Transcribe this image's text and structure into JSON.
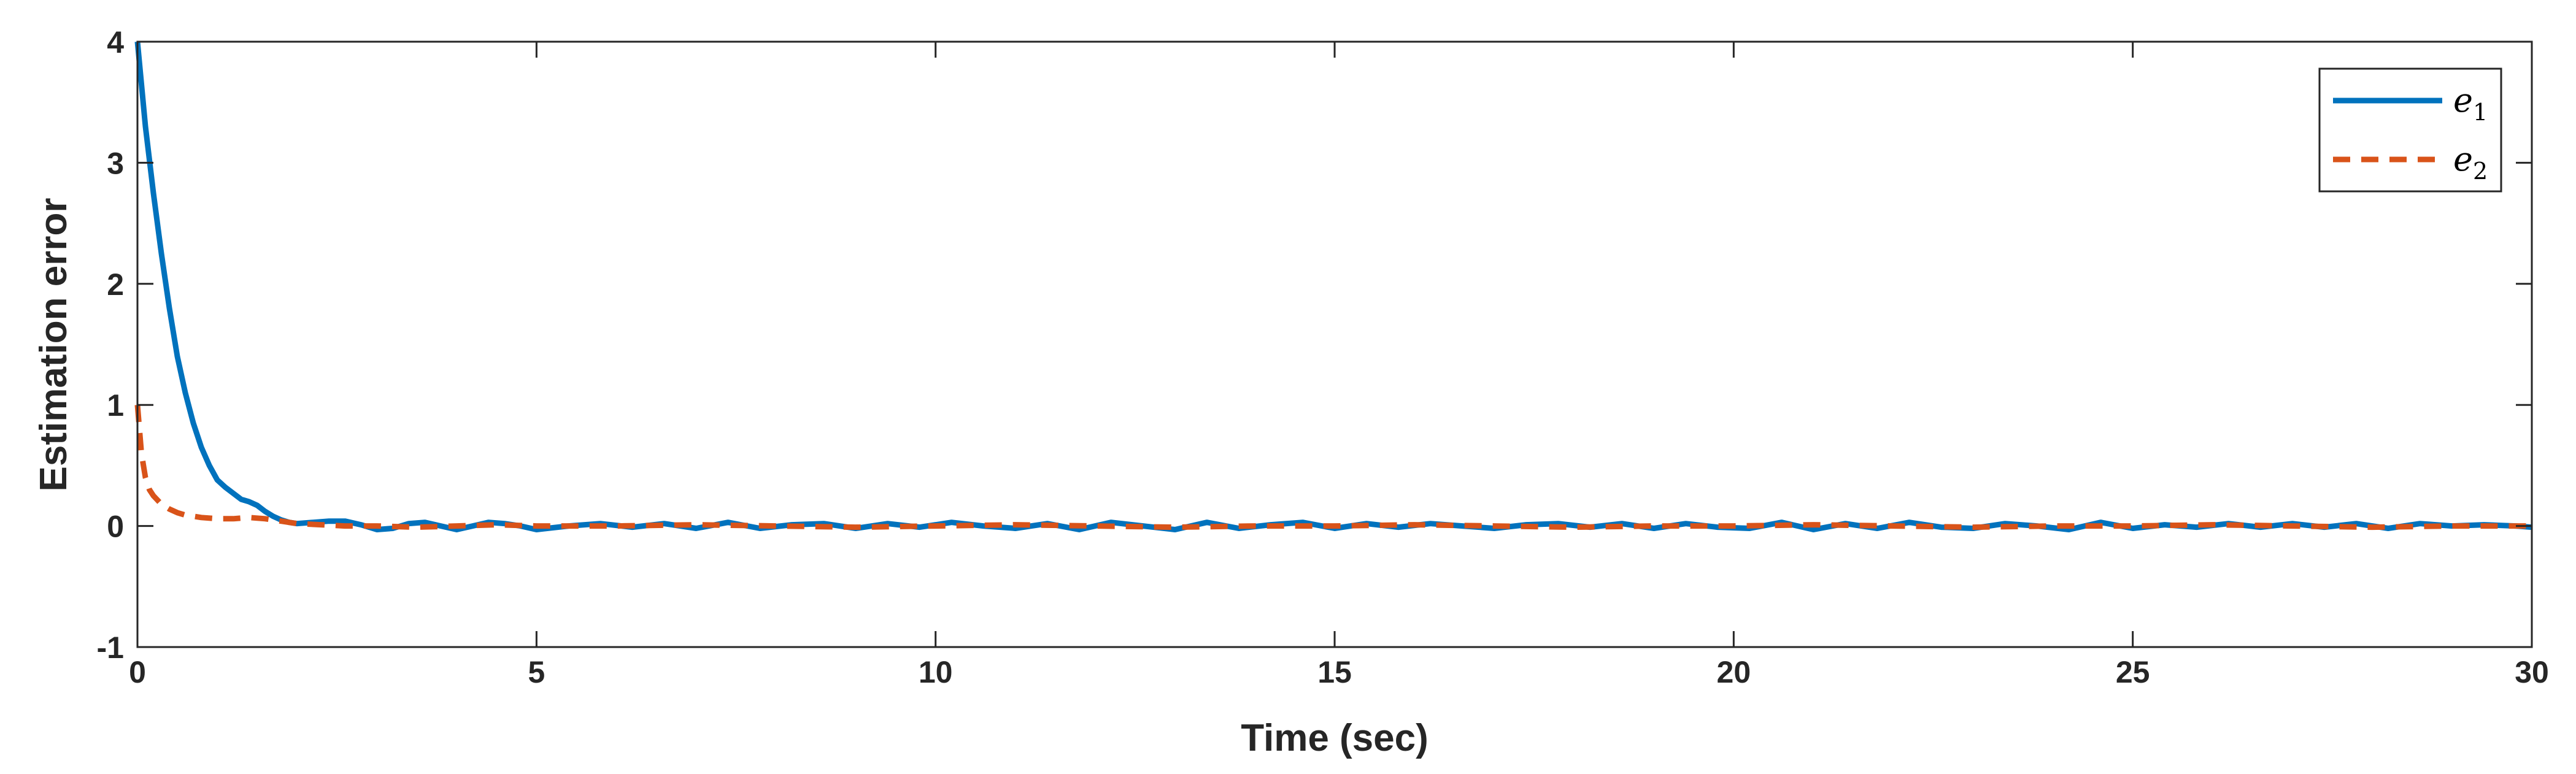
{
  "chart_data": {
    "type": "line",
    "title": "",
    "xlabel": "Time (sec)",
    "ylabel": "Estimation error",
    "xlim": [
      0,
      30
    ],
    "ylim": [
      -1,
      4
    ],
    "xticks": [
      0,
      5,
      10,
      15,
      20,
      25,
      30
    ],
    "yticks": [
      -1,
      0,
      1,
      2,
      3,
      4
    ],
    "grid": false,
    "legend_position": "top-right",
    "series": [
      {
        "name": "e1",
        "legend_base": "e",
        "legend_sub": "1",
        "color": "#0072BD",
        "style": "solid",
        "x": [
          0,
          0.1,
          0.2,
          0.3,
          0.4,
          0.5,
          0.6,
          0.7,
          0.8,
          0.9,
          1.0,
          1.1,
          1.2,
          1.3,
          1.4,
          1.5,
          1.6,
          1.7,
          1.8,
          1.9,
          2.0,
          2.2,
          2.4,
          2.6,
          2.8,
          3.0,
          3.2,
          3.4,
          3.6,
          3.8,
          4.0,
          4.2,
          4.4,
          4.6,
          4.8,
          5.0,
          5.4,
          5.8,
          6.2,
          6.6,
          7.0,
          7.4,
          7.8,
          8.2,
          8.6,
          9.0,
          9.4,
          9.8,
          10.2,
          10.6,
          11.0,
          11.4,
          11.8,
          12.2,
          12.6,
          13.0,
          13.4,
          13.8,
          14.2,
          14.6,
          15.0,
          15.4,
          15.8,
          16.2,
          16.6,
          17.0,
          17.4,
          17.8,
          18.2,
          18.6,
          19.0,
          19.4,
          19.8,
          20.2,
          20.6,
          21.0,
          21.4,
          21.8,
          22.2,
          22.6,
          23.0,
          23.4,
          23.8,
          24.2,
          24.6,
          25.0,
          25.4,
          25.8,
          26.2,
          26.6,
          27.0,
          27.4,
          27.8,
          28.2,
          28.6,
          29.0,
          29.4,
          29.8,
          30.0
        ],
        "y": [
          4.0,
          3.3,
          2.75,
          2.25,
          1.8,
          1.4,
          1.1,
          0.85,
          0.65,
          0.5,
          0.38,
          0.32,
          0.27,
          0.22,
          0.2,
          0.17,
          0.12,
          0.08,
          0.05,
          0.03,
          0.02,
          0.03,
          0.04,
          0.04,
          0.01,
          -0.03,
          -0.02,
          0.02,
          0.03,
          0.0,
          -0.03,
          0.0,
          0.03,
          0.02,
          0.0,
          -0.03,
          0.0,
          0.02,
          -0.01,
          0.02,
          -0.02,
          0.03,
          -0.02,
          0.01,
          0.02,
          -0.02,
          0.02,
          -0.01,
          0.03,
          0.0,
          -0.02,
          0.02,
          -0.03,
          0.03,
          0.0,
          -0.03,
          0.03,
          -0.02,
          0.01,
          0.03,
          -0.02,
          0.02,
          -0.01,
          0.02,
          0.0,
          -0.02,
          0.01,
          0.02,
          -0.01,
          0.02,
          -0.02,
          0.02,
          -0.01,
          -0.02,
          0.03,
          -0.03,
          0.02,
          -0.02,
          0.03,
          -0.01,
          -0.02,
          0.02,
          0.0,
          -0.03,
          0.03,
          -0.02,
          0.01,
          -0.01,
          0.02,
          -0.01,
          0.02,
          -0.01,
          0.02,
          -0.02,
          0.02,
          0.0,
          0.01,
          0.0,
          -0.01
        ]
      },
      {
        "name": "e2",
        "legend_base": "e",
        "legend_sub": "2",
        "color": "#D95319",
        "style": "dashed",
        "x": [
          0,
          0.05,
          0.1,
          0.15,
          0.2,
          0.3,
          0.4,
          0.5,
          0.6,
          0.8,
          1.0,
          1.2,
          1.4,
          1.6,
          1.8,
          2.0,
          2.3,
          2.6,
          3.0,
          3.5,
          4.0,
          4.5,
          5.0,
          6.0,
          7.0,
          8.0,
          9.0,
          10.0,
          11.0,
          12.0,
          13.0,
          14.0,
          15.0,
          16.0,
          17.0,
          18.0,
          19.0,
          20.0,
          21.0,
          22.0,
          23.0,
          24.0,
          25.0,
          26.0,
          27.0,
          28.0,
          29.0,
          30.0
        ],
        "y": [
          1.0,
          0.6,
          0.4,
          0.3,
          0.25,
          0.18,
          0.14,
          0.11,
          0.09,
          0.07,
          0.06,
          0.06,
          0.07,
          0.06,
          0.04,
          0.02,
          0.01,
          0.0,
          0.0,
          -0.01,
          0.0,
          0.01,
          0.0,
          0.0,
          0.01,
          0.0,
          -0.01,
          0.0,
          0.01,
          0.0,
          -0.01,
          0.0,
          0.0,
          0.01,
          0.0,
          -0.01,
          0.0,
          0.0,
          0.01,
          0.0,
          -0.01,
          0.0,
          0.0,
          0.01,
          0.0,
          -0.01,
          0.0,
          0.0
        ]
      }
    ]
  }
}
